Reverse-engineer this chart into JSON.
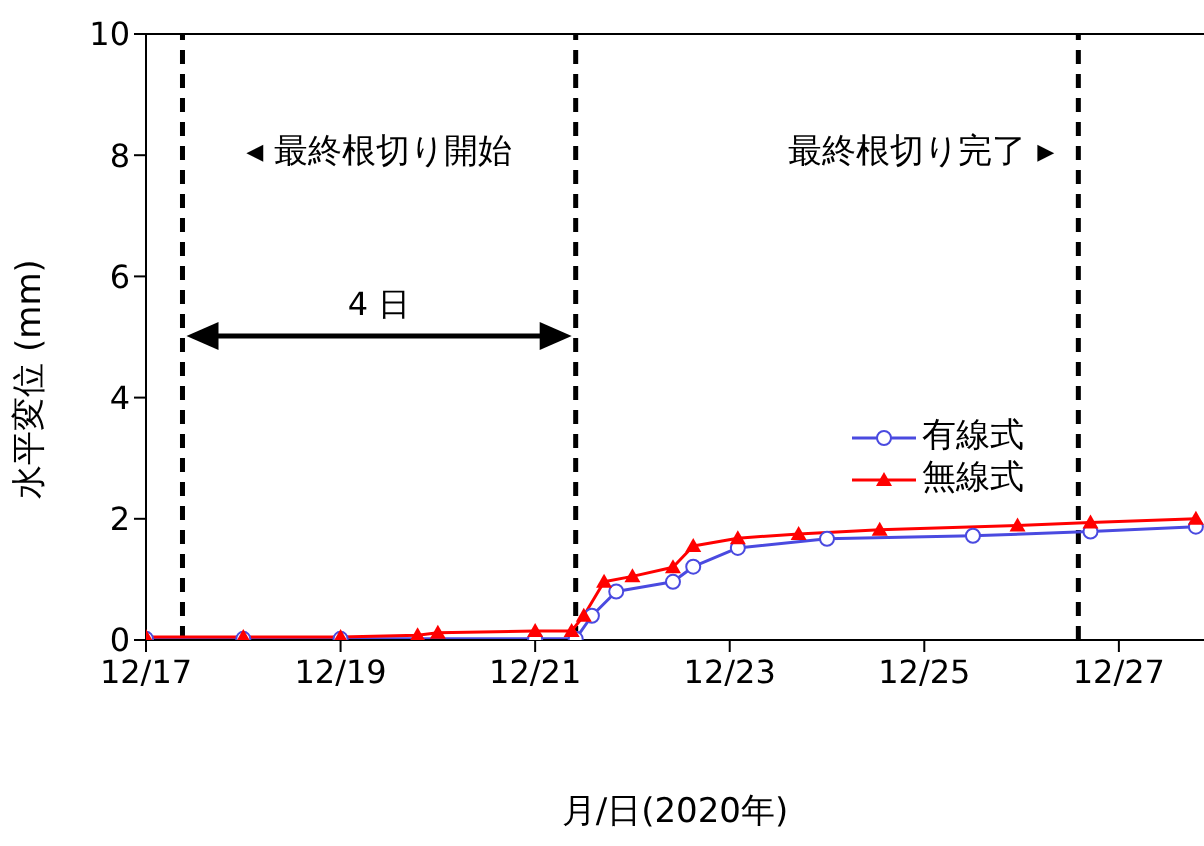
{
  "chart_data": {
    "type": "line",
    "xlabel": "月/日(2020年)",
    "ylabel": "水平変位 (mm)",
    "xlim": [
      "2020-12-17",
      "2020-12-27T21:00"
    ],
    "xticks": [
      {
        "value": "2020-12-17",
        "label": "12/17"
      },
      {
        "value": "2020-12-19",
        "label": "12/19"
      },
      {
        "value": "2020-12-21",
        "label": "12/21"
      },
      {
        "value": "2020-12-23",
        "label": "12/23"
      },
      {
        "value": "2020-12-25",
        "label": "12/25"
      },
      {
        "value": "2020-12-27",
        "label": "12/27"
      }
    ],
    "ylim": [
      0,
      10
    ],
    "yticks": [
      0,
      2,
      4,
      6,
      8,
      10
    ],
    "legend": "right",
    "line_style": "solid",
    "series": [
      {
        "name": "有線式",
        "color": "#4a4ae0",
        "marker": "circle",
        "x": [
          "2020-12-17",
          "2020-12-18",
          "2020-12-19",
          "2020-12-21",
          "2020-12-21T10:00",
          "2020-12-21T14:00",
          "2020-12-21T20:00",
          "2020-12-22T10:00",
          "2020-12-22T15:00",
          "2020-12-23T02:00",
          "2020-12-24",
          "2020-12-25T12:00",
          "2020-12-26T17:00",
          "2020-12-27T19:00"
        ],
        "values": [
          0.02,
          0.02,
          0.02,
          0.02,
          0.02,
          0.4,
          0.8,
          0.96,
          1.21,
          1.52,
          1.67,
          1.72,
          1.79,
          1.87
        ]
      },
      {
        "name": "無線式",
        "color": "#ff0000",
        "marker": "triangle",
        "x": [
          "2020-12-17",
          "2020-12-18",
          "2020-12-19",
          "2020-12-19T19:00",
          "2020-12-20",
          "2020-12-21",
          "2020-12-21T09:00",
          "2020-12-21T12:00",
          "2020-12-21T17:00",
          "2020-12-22",
          "2020-12-22T10:00",
          "2020-12-22T15:00",
          "2020-12-23T02:00",
          "2020-12-23T17:00",
          "2020-12-24T13:00",
          "2020-12-25T23:00",
          "2020-12-26T17:00",
          "2020-12-27T19:00"
        ],
        "values": [
          0.05,
          0.05,
          0.05,
          0.08,
          0.12,
          0.15,
          0.15,
          0.4,
          0.96,
          1.05,
          1.2,
          1.55,
          1.68,
          1.75,
          1.82,
          1.89,
          1.94,
          2.0
        ]
      }
    ],
    "ref_lines": [
      {
        "axis": "x",
        "value": "2020-12-17T09:00",
        "color": "#000000",
        "line_style": "dashed"
      },
      {
        "axis": "x",
        "value": "2020-12-21T10:00",
        "color": "#000000",
        "line_style": "dashed"
      },
      {
        "axis": "x",
        "value": "2020-12-26T14:00",
        "color": "#000000",
        "line_style": "dashed"
      }
    ],
    "annotations": [
      "◂ 最終根切り開始",
      "最終根切り完了 ▸",
      "4 日"
    ]
  }
}
